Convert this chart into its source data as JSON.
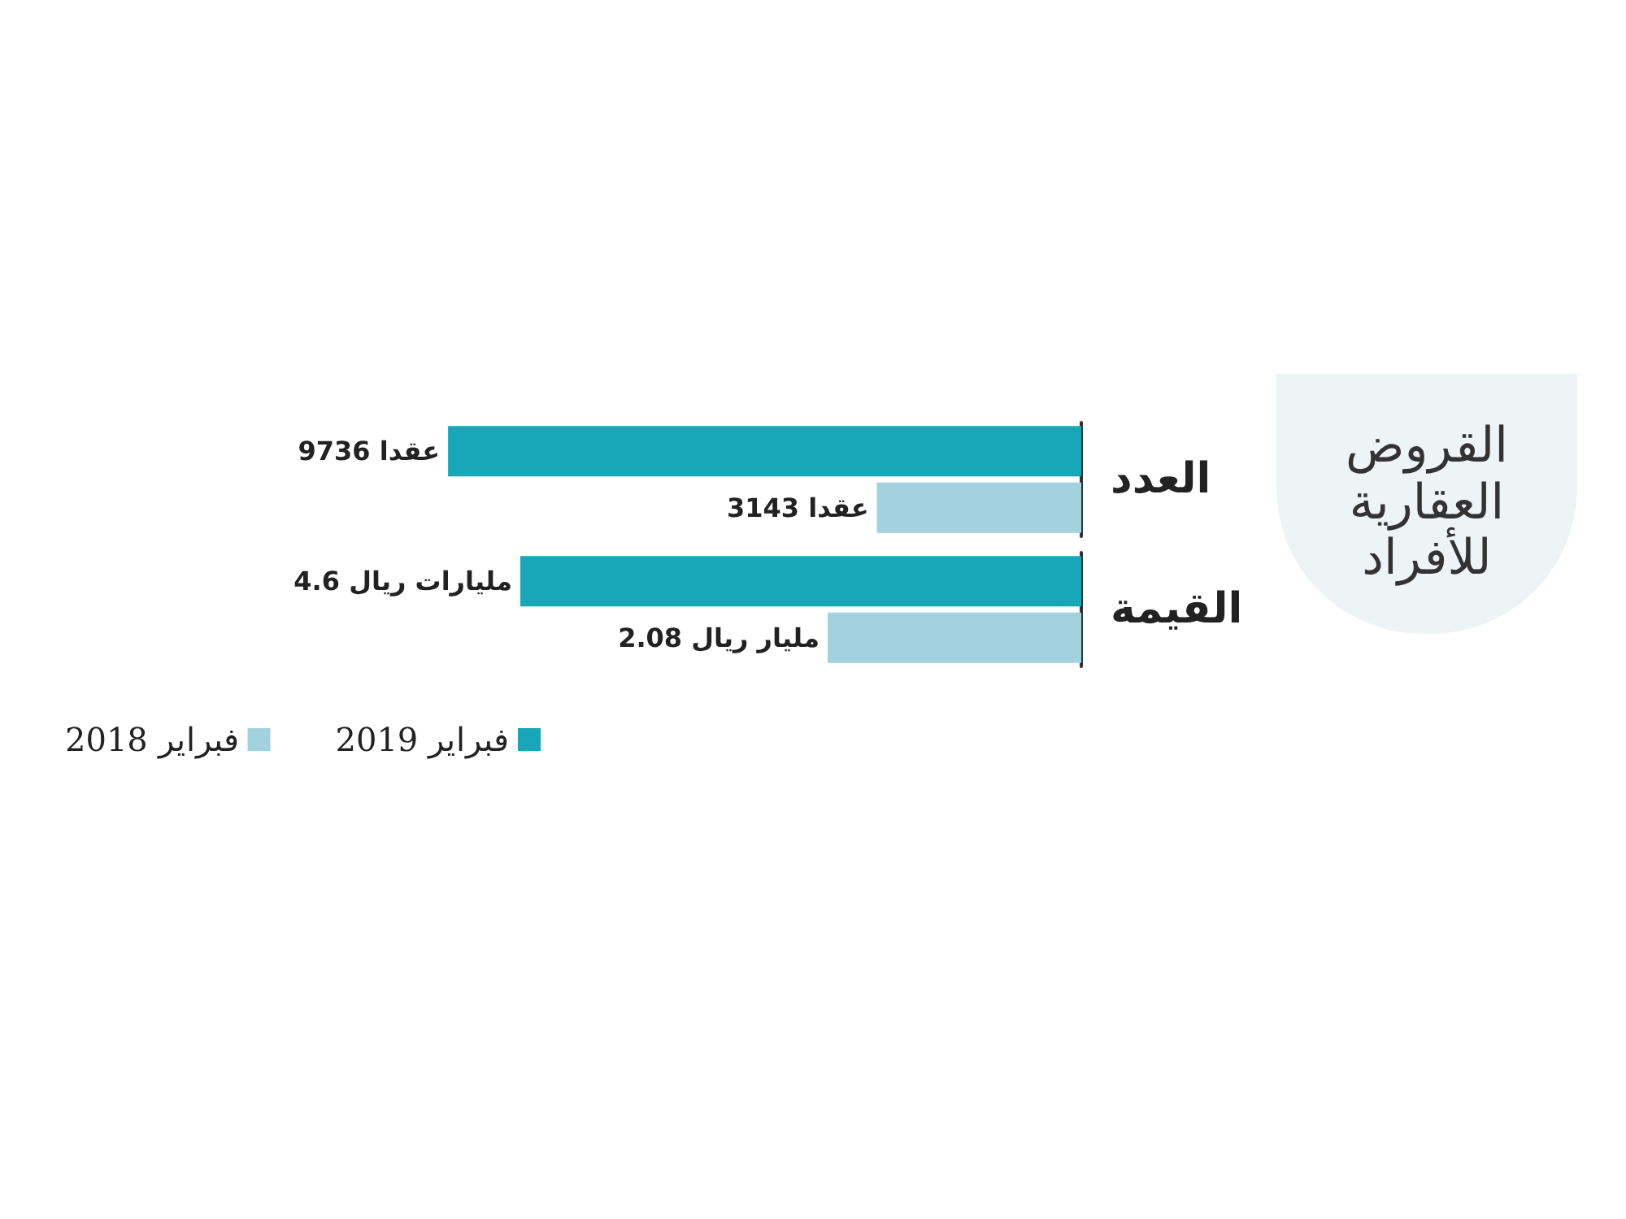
{
  "chart_data": [
    {
      "type": "other",
      "title": "القروض العقارية للأفراد"
    },
    {
      "type": "bar",
      "orientation": "horizontal",
      "categories": [
        "العدد"
      ],
      "series": [
        {
          "color": "#17a7b9",
          "values": [
            9736
          ],
          "value_labels": [
            "9736 عقدا"
          ]
        },
        {
          "color": "#a2d2de",
          "values": [
            3143
          ],
          "value_labels": [
            "3143 عقدا"
          ]
        }
      ]
    },
    {
      "type": "bar",
      "orientation": "horizontal",
      "categories": [
        "القيمة"
      ],
      "legend": "bottom left",
      "series": [
        {
          "name": "فبراير 2019",
          "color": "#17a7b9",
          "values": [
            4.6
          ],
          "value_labels": [
            "4.6 مليارات ريال"
          ]
        },
        {
          "name": "فبراير 2018",
          "color": "#a2d2de",
          "values": [
            2.08
          ],
          "value_labels": [
            "2.08 مليار ريال"
          ]
        }
      ]
    }
  ]
}
